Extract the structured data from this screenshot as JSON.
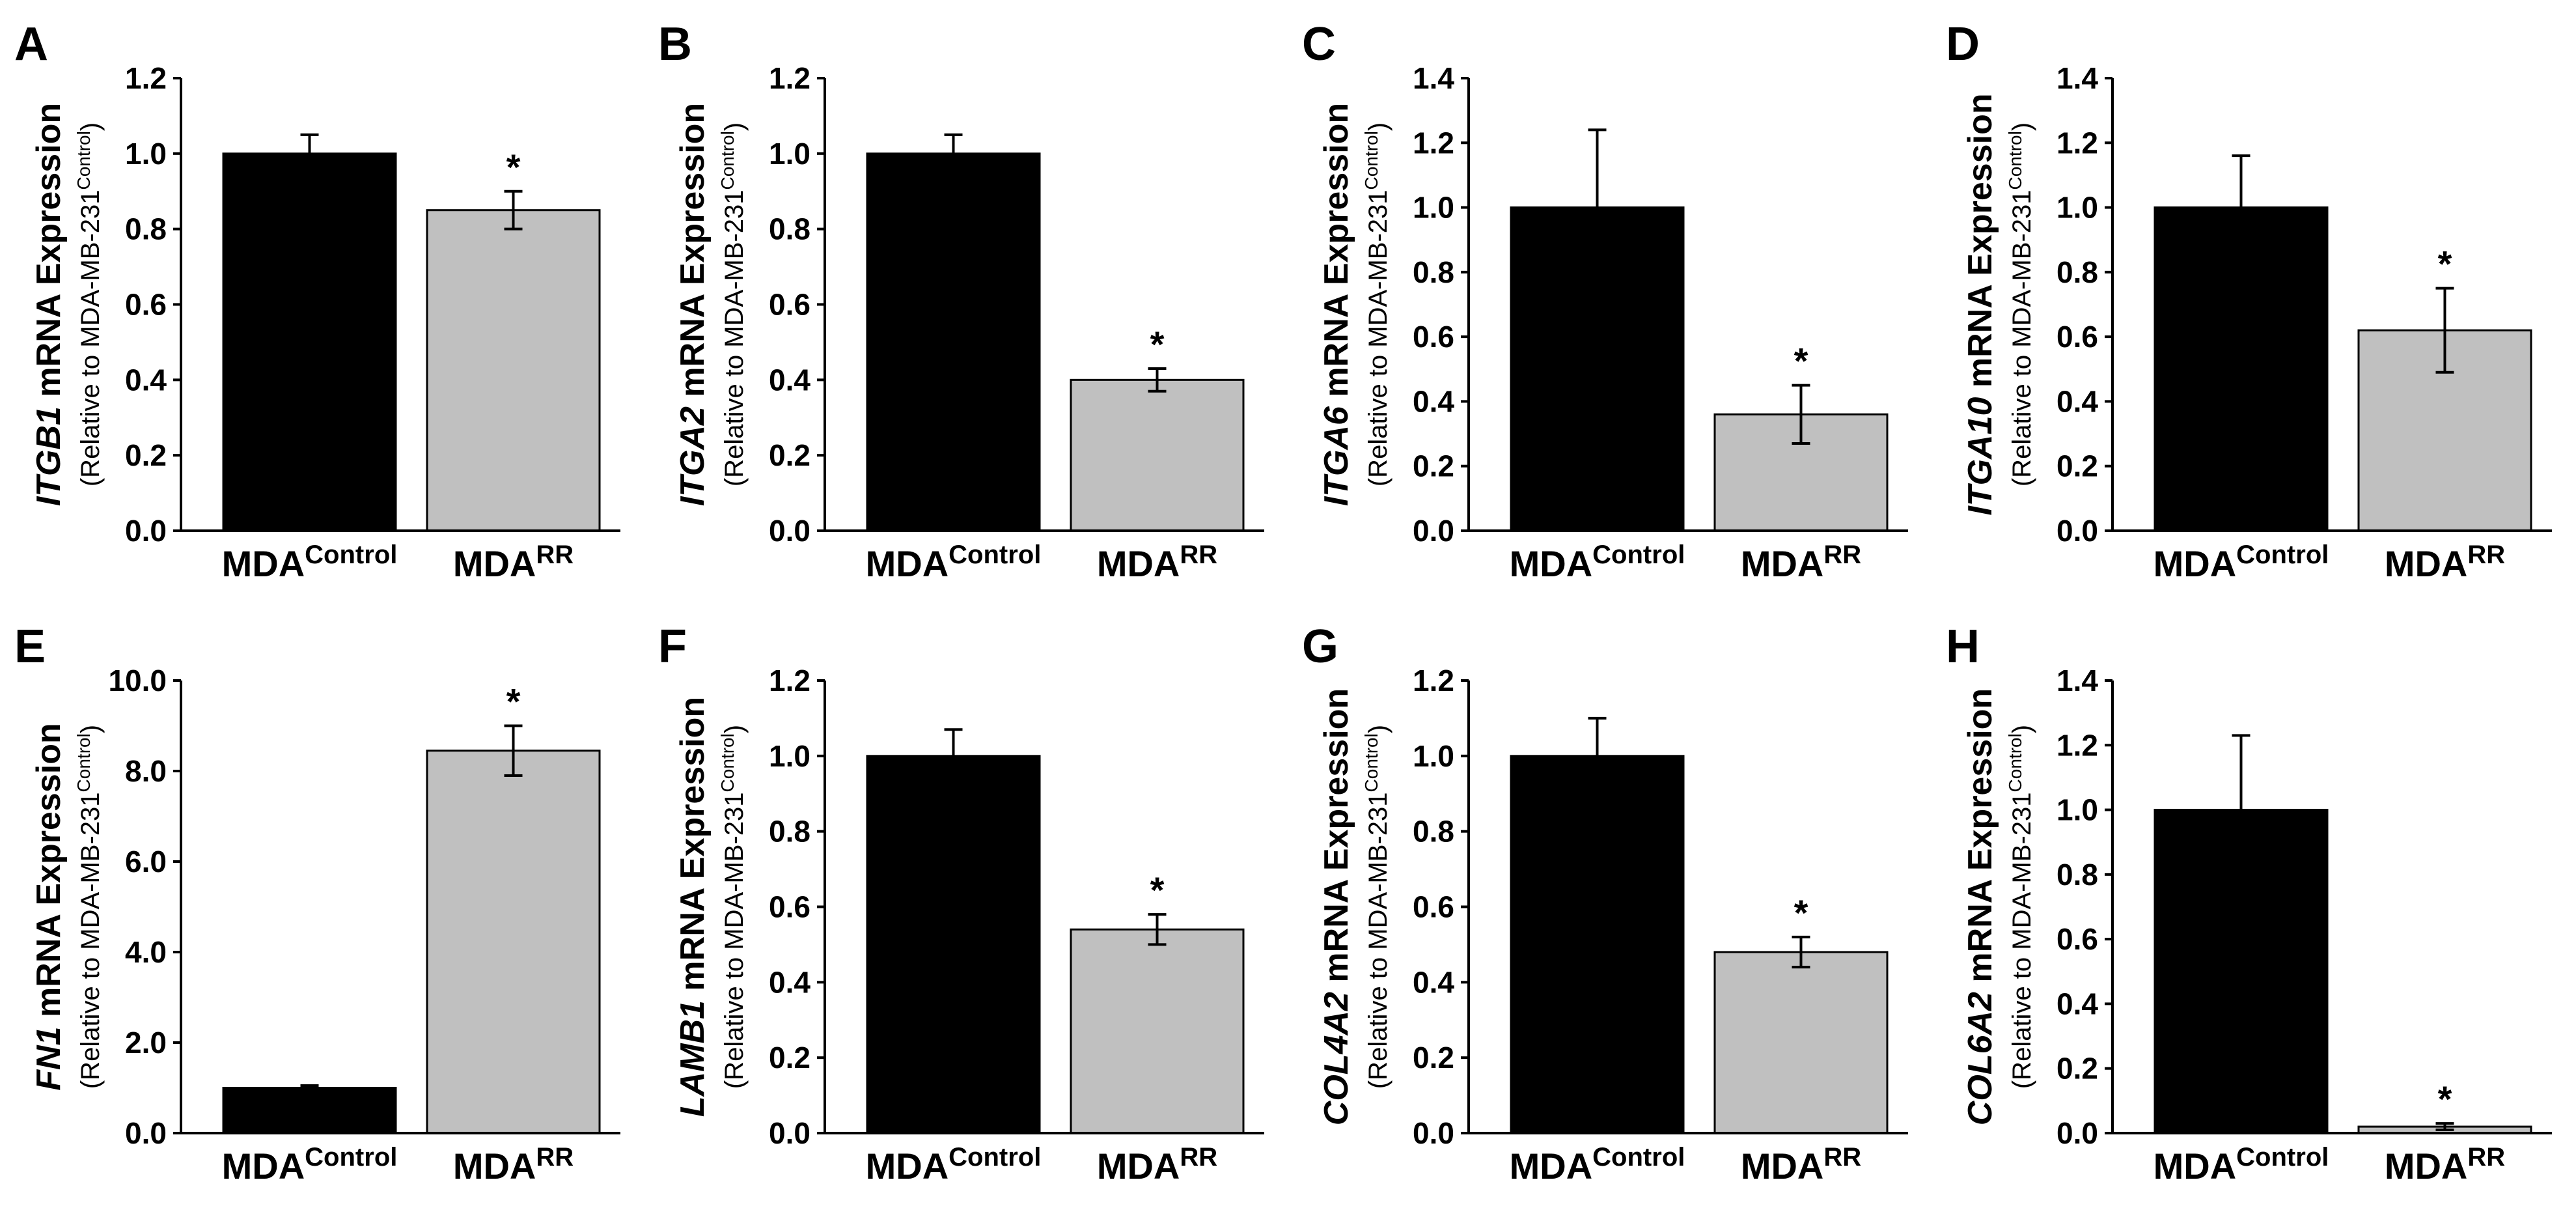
{
  "figure": {
    "group_label_base": "MDA",
    "group_superscripts": [
      "Control",
      "RR"
    ],
    "ylabel_suffix": " mRNA Expression",
    "ylabel_line2_prefix": "(Relative to MDA-MB-231",
    "ylabel_line2_sup": "Control",
    "ylabel_line2_suffix": ")",
    "colors": {
      "control": "#000000",
      "rr": "#c0c0c0",
      "axis": "#000000"
    }
  },
  "chart_data": [
    {
      "panel": "A",
      "type": "bar",
      "gene": "ITGB1",
      "categories": [
        "MDA Control",
        "MDA RR"
      ],
      "values": [
        1.0,
        0.85
      ],
      "errors": [
        0.05,
        0.05
      ],
      "significant": [
        false,
        true
      ],
      "significance_mark": "*",
      "ylim": [
        0,
        1.2
      ],
      "yticks": [
        "0.0",
        "0.2",
        "0.4",
        "0.6",
        "0.8",
        "1.0",
        "1.2"
      ]
    },
    {
      "panel": "B",
      "type": "bar",
      "gene": "ITGA2",
      "categories": [
        "MDA Control",
        "MDA RR"
      ],
      "values": [
        1.0,
        0.4
      ],
      "errors": [
        0.05,
        0.03
      ],
      "significant": [
        false,
        true
      ],
      "significance_mark": "*",
      "ylim": [
        0,
        1.2
      ],
      "yticks": [
        "0.0",
        "0.2",
        "0.4",
        "0.6",
        "0.8",
        "1.0",
        "1.2"
      ]
    },
    {
      "panel": "C",
      "type": "bar",
      "gene": "ITGA6",
      "categories": [
        "MDA Control",
        "MDA RR"
      ],
      "values": [
        1.0,
        0.36
      ],
      "errors": [
        0.24,
        0.09
      ],
      "significant": [
        false,
        true
      ],
      "significance_mark": "*",
      "ylim": [
        0,
        1.4
      ],
      "yticks": [
        "0.0",
        "0.2",
        "0.4",
        "0.6",
        "0.8",
        "1.0",
        "1.2",
        "1.4"
      ]
    },
    {
      "panel": "D",
      "type": "bar",
      "gene": "ITGA10",
      "categories": [
        "MDA Control",
        "MDA RR"
      ],
      "values": [
        1.0,
        0.62
      ],
      "errors": [
        0.16,
        0.13
      ],
      "significant": [
        false,
        true
      ],
      "significance_mark": "*",
      "ylim": [
        0,
        1.4
      ],
      "yticks": [
        "0.0",
        "0.2",
        "0.4",
        "0.6",
        "0.8",
        "1.0",
        "1.2",
        "1.4"
      ]
    },
    {
      "panel": "E",
      "type": "bar",
      "gene": "FN1",
      "categories": [
        "MDA Control",
        "MDA RR"
      ],
      "values": [
        1.0,
        8.45
      ],
      "errors": [
        0.05,
        0.55
      ],
      "significant": [
        false,
        true
      ],
      "significance_mark": "*",
      "ylim": [
        0,
        10.0
      ],
      "yticks": [
        "0.0",
        "2.0",
        "4.0",
        "6.0",
        "8.0",
        "10.0"
      ]
    },
    {
      "panel": "F",
      "type": "bar",
      "gene": "LAMB1",
      "categories": [
        "MDA Control",
        "MDA RR"
      ],
      "values": [
        1.0,
        0.54
      ],
      "errors": [
        0.07,
        0.04
      ],
      "significant": [
        false,
        true
      ],
      "significance_mark": "*",
      "ylim": [
        0,
        1.2
      ],
      "yticks": [
        "0.0",
        "0.2",
        "0.4",
        "0.6",
        "0.8",
        "1.0",
        "1.2"
      ]
    },
    {
      "panel": "G",
      "type": "bar",
      "gene": "COL4A2",
      "categories": [
        "MDA Control",
        "MDA RR"
      ],
      "values": [
        1.0,
        0.48
      ],
      "errors": [
        0.1,
        0.04
      ],
      "significant": [
        false,
        true
      ],
      "significance_mark": "*",
      "ylim": [
        0,
        1.2
      ],
      "yticks": [
        "0.0",
        "0.2",
        "0.4",
        "0.6",
        "0.8",
        "1.0",
        "1.2"
      ]
    },
    {
      "panel": "H",
      "type": "bar",
      "gene": "COL6A2",
      "categories": [
        "MDA Control",
        "MDA RR"
      ],
      "values": [
        1.0,
        0.02
      ],
      "errors": [
        0.23,
        0.01
      ],
      "significant": [
        false,
        true
      ],
      "significance_mark": "*",
      "ylim": [
        0,
        1.4
      ],
      "yticks": [
        "0.0",
        "0.2",
        "0.4",
        "0.6",
        "0.8",
        "1.0",
        "1.2",
        "1.4"
      ]
    }
  ]
}
